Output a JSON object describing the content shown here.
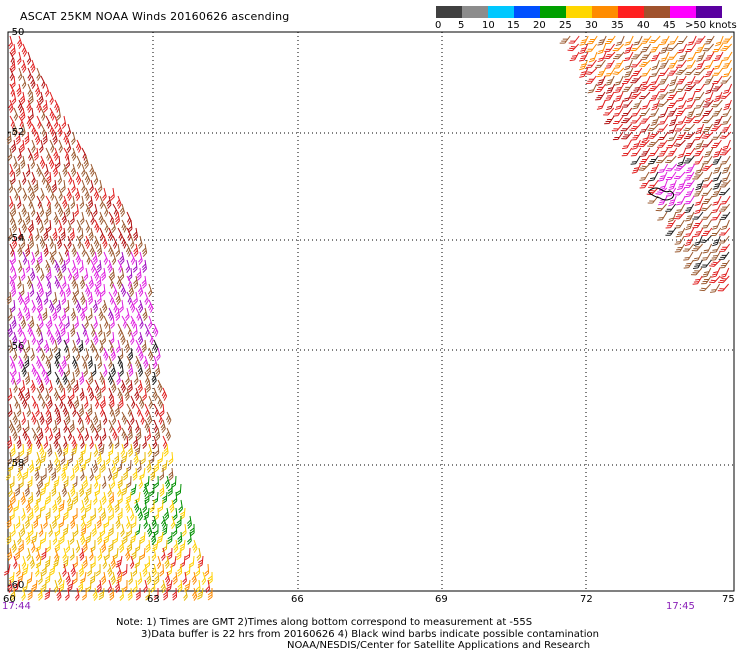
{
  "title": "ASCAT 25KM NOAA Winds 20160626 ascending",
  "scale": {
    "labels": [
      "0",
      "5",
      "10",
      "15",
      "20",
      "25",
      "30",
      "35",
      "40",
      "45",
      ">50 knots"
    ],
    "colors": [
      "#404040",
      "#8c8c8c",
      "#00c8ff",
      "#0050ff",
      "#00a000",
      "#ffd700",
      "#ff8c00",
      "#ff2020",
      "#a0522d",
      "#ff00ff",
      "#5a00a0"
    ]
  },
  "axes": {
    "lat_labels": [
      "-50",
      "-52",
      "-54",
      "-56",
      "-58",
      "-60"
    ],
    "lon_labels": [
      "60",
      "63",
      "66",
      "69",
      "72",
      "75"
    ]
  },
  "pass_times": {
    "left": "17:44",
    "right": "17:45"
  },
  "notes": {
    "line1": "Note: 1) Times are GMT 2)Times along bottom correspond to measurement at -55S",
    "line2": "3)Data buffer is 22 hrs from 20160626 4) Black wind barbs indicate possible contamination",
    "line3": "NOAA/NESDIS/Center for Satellite Applications and Research"
  }
}
